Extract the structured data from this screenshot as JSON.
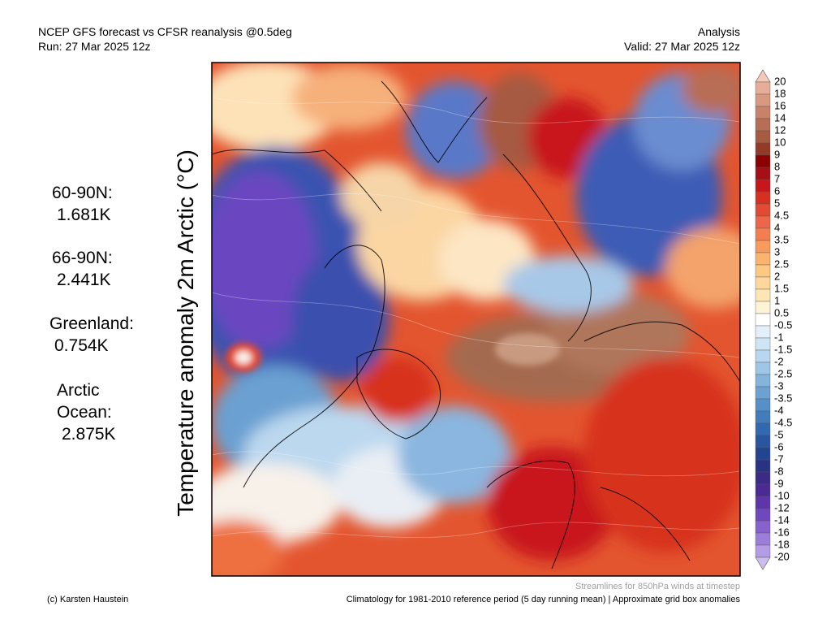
{
  "header": {
    "title": "NCEP GFS forecast vs CFSR reanalysis @0.5deg",
    "run": "Run: 27 Mar 2025 12z",
    "mode": "Analysis",
    "valid": "Valid: 27 Mar 2025 12z"
  },
  "axis_label": "Temperature anomaly 2m Arctic (°C)",
  "stats": [
    {
      "label": [
        "60-90N:"
      ],
      "value": "1.681K"
    },
    {
      "label": [
        "66-90N:"
      ],
      "value": "2.441K"
    },
    {
      "label": [
        "Greenland:"
      ],
      "value": "0.754K"
    },
    {
      "label": [
        "Arctic",
        "Ocean:"
      ],
      "value": "2.875K"
    }
  ],
  "colorbar": {
    "labels": [
      20,
      18,
      16,
      14,
      12,
      10,
      9,
      8,
      7,
      6,
      5,
      4.5,
      4,
      3.5,
      3,
      2.5,
      2,
      1.5,
      1,
      0.5,
      -0.5,
      -1,
      -1.5,
      -2,
      -2.5,
      -3,
      -3.5,
      -4,
      -4.5,
      -5,
      -6,
      -7,
      -8,
      -9,
      -10,
      -12,
      -14,
      -16,
      -18,
      -20
    ],
    "colors": [
      "#f5c8b8",
      "#e8ad98",
      "#d99880",
      "#c8826a",
      "#b86d55",
      "#a65a42",
      "#943a28",
      "#8b0000",
      "#a50f15",
      "#c8161d",
      "#d7301f",
      "#e34a33",
      "#ef6548",
      "#f47e4f",
      "#f89a5c",
      "#fbb36e",
      "#fdc882",
      "#fdd89a",
      "#fee6b4",
      "#fff3d6",
      "#ffffff",
      "#e3f0fa",
      "#cfe4f4",
      "#b8d6ee",
      "#9ec6e6",
      "#84b4dc",
      "#6ba2d2",
      "#5590c8",
      "#417dbd",
      "#3269b0",
      "#2856a0",
      "#23458f",
      "#2a3383",
      "#3b2a86",
      "#4b2a96",
      "#5e36aa",
      "#7048bd",
      "#8562cc",
      "#9b7ed9",
      "#b49de4",
      "#cdbcef"
    ]
  },
  "footer": {
    "credit": "(c) Karsten Haustein",
    "streamlines": "Streamlines for 850hPa winds at timestep",
    "climatology": "Climatology for 1981-2010 reference period (5 day running mean) | Approximate grid box anomalies"
  }
}
